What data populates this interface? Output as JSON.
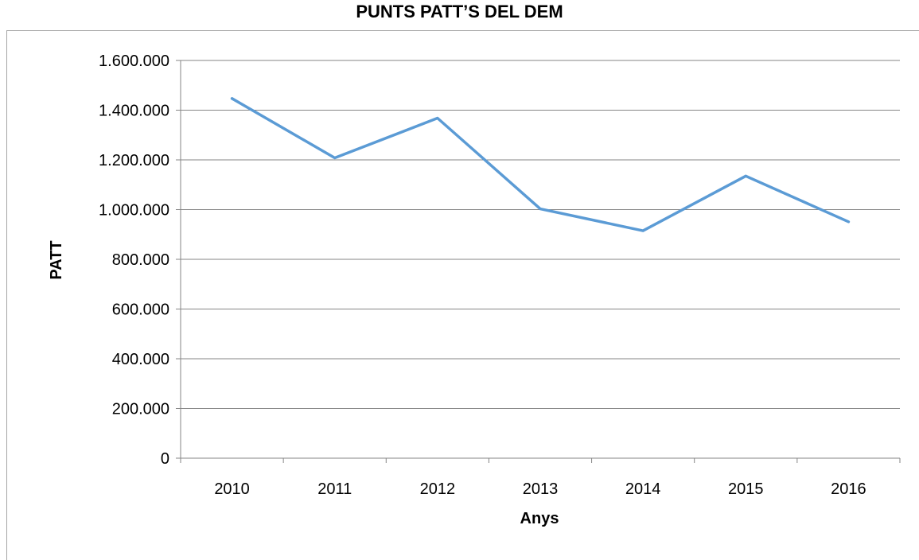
{
  "chart_data": {
    "type": "line",
    "title": "PUNTS PATT’S DEL DEM",
    "xlabel": "Anys",
    "ylabel": "PATT",
    "categories": [
      "2010",
      "2011",
      "2012",
      "2013",
      "2014",
      "2015",
      "2016"
    ],
    "series": [
      {
        "values": [
          1447000,
          1208000,
          1368000,
          1003000,
          915000,
          1135000,
          951000
        ]
      }
    ],
    "ylim": [
      0,
      1600000
    ],
    "yticks": [
      0,
      200000,
      400000,
      600000,
      800000,
      1000000,
      1200000,
      1400000,
      1600000
    ],
    "ytick_labels": [
      "0",
      "200.000",
      "400.000",
      "600.000",
      "800.000",
      "1.000.000",
      "1.200.000",
      "1.400.000",
      "1.600.000"
    ],
    "grid": true,
    "legend": "none",
    "line_color": "#5b9bd5",
    "grid_color": "#868686"
  }
}
